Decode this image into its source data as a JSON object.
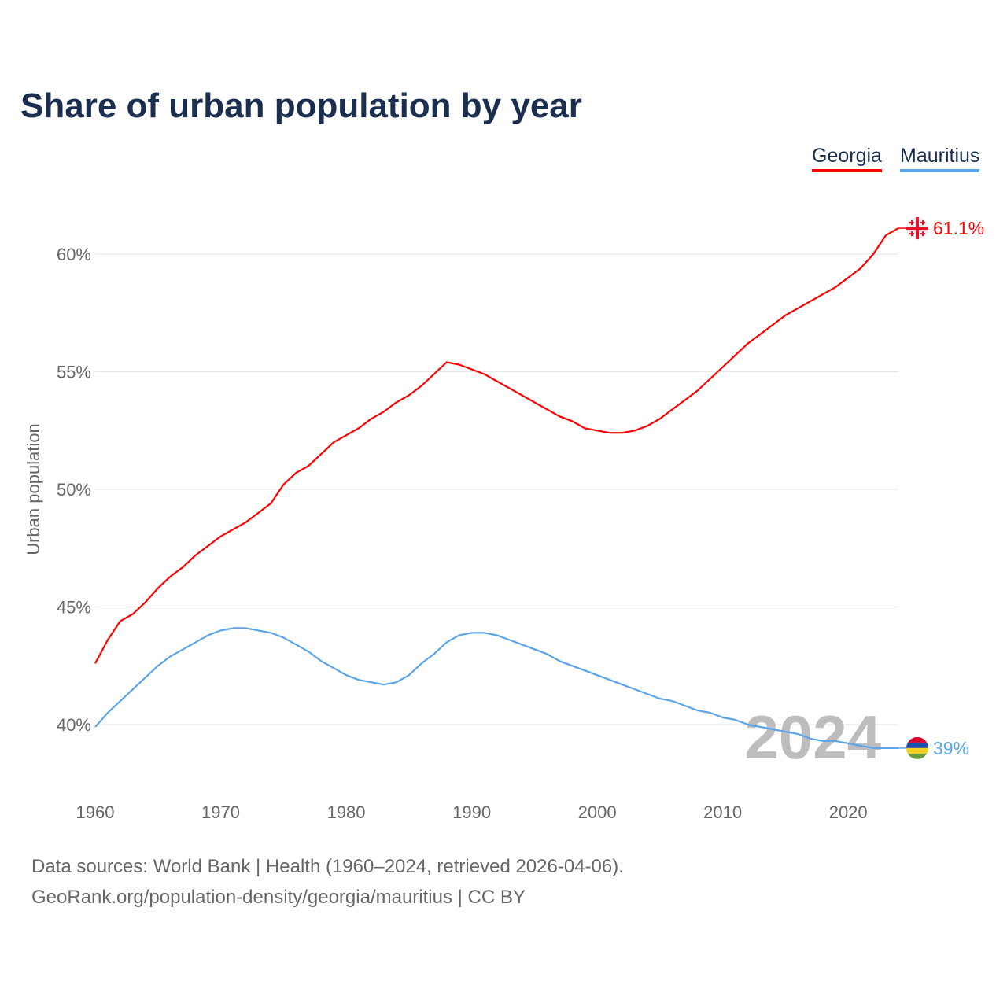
{
  "chart_data": {
    "type": "line",
    "title": "Share of urban population by year",
    "xlabel": "",
    "ylabel": "Urban population",
    "xlim": [
      1960,
      2024
    ],
    "ylim": [
      38,
      62
    ],
    "yticks": [
      40,
      45,
      50,
      55,
      60
    ],
    "ytick_labels": [
      "40%",
      "45%",
      "50%",
      "55%",
      "60%"
    ],
    "xticks": [
      1960,
      1970,
      1980,
      1990,
      2000,
      2010,
      2020
    ],
    "xtick_labels": [
      "1960",
      "1970",
      "1980",
      "1990",
      "2000",
      "2010",
      "2020"
    ],
    "grid": true,
    "legend_placement": "top-right",
    "year_watermark": "2024",
    "x": [
      1960,
      1961,
      1962,
      1963,
      1964,
      1965,
      1966,
      1967,
      1968,
      1969,
      1970,
      1971,
      1972,
      1973,
      1974,
      1975,
      1976,
      1977,
      1978,
      1979,
      1980,
      1981,
      1982,
      1983,
      1984,
      1985,
      1986,
      1987,
      1988,
      1989,
      1990,
      1991,
      1992,
      1993,
      1994,
      1995,
      1996,
      1997,
      1998,
      1999,
      2000,
      2001,
      2002,
      2003,
      2004,
      2005,
      2006,
      2007,
      2008,
      2009,
      2010,
      2011,
      2012,
      2013,
      2014,
      2015,
      2016,
      2017,
      2018,
      2019,
      2020,
      2021,
      2022,
      2023,
      2024
    ],
    "series": [
      {
        "name": "Georgia",
        "color": "#ff0000",
        "end_label": "61.1%",
        "values": [
          42.6,
          43.6,
          44.4,
          44.7,
          45.2,
          45.8,
          46.3,
          46.7,
          47.2,
          47.6,
          48.0,
          48.3,
          48.6,
          49.0,
          49.4,
          50.2,
          50.7,
          51.0,
          51.5,
          52.0,
          52.3,
          52.6,
          53.0,
          53.3,
          53.7,
          54.0,
          54.4,
          54.9,
          55.4,
          55.3,
          55.1,
          54.9,
          54.6,
          54.3,
          54.0,
          53.7,
          53.4,
          53.1,
          52.9,
          52.6,
          52.5,
          52.4,
          52.4,
          52.5,
          52.7,
          53.0,
          53.4,
          53.8,
          54.2,
          54.7,
          55.2,
          55.7,
          56.2,
          56.6,
          57.0,
          57.4,
          57.7,
          58.0,
          58.3,
          58.6,
          59.0,
          59.4,
          60.0,
          60.8,
          61.1
        ]
      },
      {
        "name": "Mauritius",
        "color": "#5ba4ea",
        "end_label": "39%",
        "values": [
          39.9,
          40.5,
          41.0,
          41.5,
          42.0,
          42.5,
          42.9,
          43.2,
          43.5,
          43.8,
          44.0,
          44.1,
          44.1,
          44.0,
          43.9,
          43.7,
          43.4,
          43.1,
          42.7,
          42.4,
          42.1,
          41.9,
          41.8,
          41.7,
          41.8,
          42.1,
          42.6,
          43.0,
          43.5,
          43.8,
          43.9,
          43.9,
          43.8,
          43.6,
          43.4,
          43.2,
          43.0,
          42.7,
          42.5,
          42.3,
          42.1,
          41.9,
          41.7,
          41.5,
          41.3,
          41.1,
          41.0,
          40.8,
          40.6,
          40.5,
          40.3,
          40.2,
          40.0,
          39.9,
          39.8,
          39.7,
          39.6,
          39.4,
          39.3,
          39.3,
          39.2,
          39.1,
          39.0,
          39.0,
          39.0
        ]
      }
    ]
  },
  "footer": {
    "line1": "Data sources: World Bank | Health (1960–2024, retrieved 2026-04-06).",
    "line2": "GeoRank.org/population-density/georgia/mauritius | CC BY"
  }
}
